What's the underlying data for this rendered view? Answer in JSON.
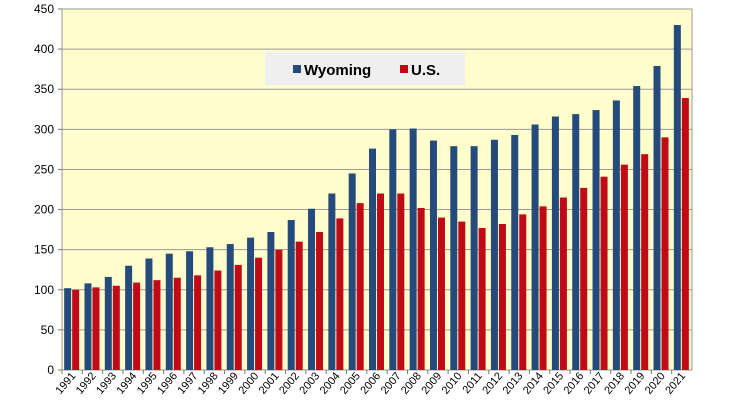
{
  "chart_data": {
    "type": "bar",
    "title": "",
    "xlabel": "",
    "ylabel": "",
    "ylim": [
      0,
      450
    ],
    "yticks": [
      0,
      50,
      100,
      150,
      200,
      250,
      300,
      350,
      400,
      450
    ],
    "grid": true,
    "legend_position": "top-center",
    "categories": [
      "1991",
      "1992",
      "1993",
      "1994",
      "1995",
      "1996",
      "1997",
      "1998",
      "1999",
      "2000",
      "2001",
      "2002",
      "2003",
      "2004",
      "2005",
      "2006",
      "2007",
      "2008",
      "2009",
      "2010",
      "2011",
      "2012",
      "2013",
      "2014",
      "2015",
      "2016",
      "2017",
      "2018",
      "2019",
      "2020",
      "2021"
    ],
    "series": [
      {
        "name": "Wyoming",
        "color": "#254a7c",
        "values": [
          102,
          108,
          116,
          130,
          139,
          145,
          148,
          153,
          157,
          165,
          172,
          187,
          201,
          220,
          245,
          276,
          300,
          301,
          286,
          279,
          279,
          287,
          293,
          306,
          316,
          319,
          324,
          336,
          354,
          379,
          430
        ]
      },
      {
        "name": "U.S.",
        "color": "#c00a16",
        "values": [
          100,
          103,
          105,
          109,
          112,
          115,
          118,
          124,
          131,
          140,
          150,
          160,
          172,
          189,
          208,
          220,
          220,
          202,
          190,
          185,
          177,
          182,
          194,
          204,
          215,
          227,
          241,
          256,
          269,
          290,
          339
        ]
      }
    ]
  }
}
